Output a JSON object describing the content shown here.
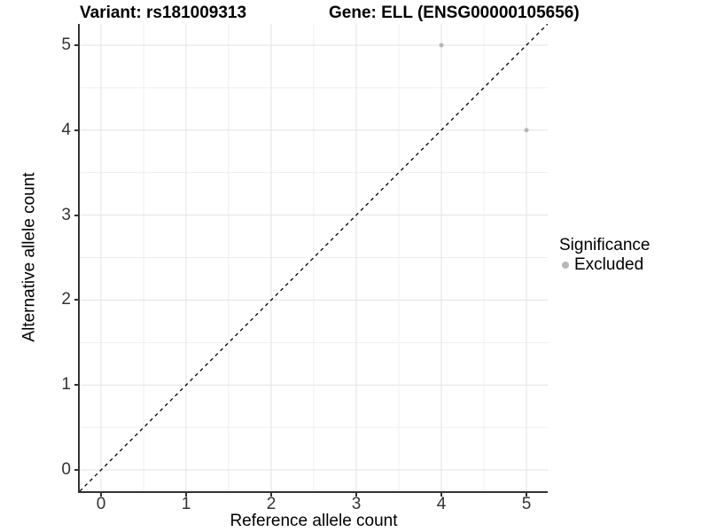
{
  "header": {
    "variant_title": "Variant: rs181009313",
    "gene_title": "Gene: ELL (ENSG00000105656)"
  },
  "axes": {
    "x_label": "Reference allele count",
    "y_label": "Alternative allele count"
  },
  "legend": {
    "title": "Significance",
    "items": [
      {
        "label": "Excluded",
        "color": "#b8b8b8"
      }
    ]
  },
  "chart_data": {
    "type": "scatter",
    "title": "Variant: rs181009313   Gene: ELL (ENSG00000105656)",
    "xlabel": "Reference allele count",
    "ylabel": "Alternative allele count",
    "xlim": [
      -0.25,
      5.25
    ],
    "ylim": [
      -0.25,
      5.25
    ],
    "x_ticks": [
      0,
      1,
      2,
      3,
      4,
      5
    ],
    "y_ticks": [
      0,
      1,
      2,
      3,
      4,
      5
    ],
    "grid": "major+minor",
    "legend_position": "right",
    "series": [
      {
        "name": "Excluded",
        "color": "#b8b8b8",
        "point_radius": 2.5,
        "points": [
          {
            "x": 4,
            "y": 5
          },
          {
            "x": 5,
            "y": 4
          }
        ]
      }
    ],
    "reference_line": {
      "type": "identity",
      "style": "dashed",
      "color": "#000000"
    },
    "colors": {
      "background": "#ffffff",
      "axis_line": "#333333",
      "grid_major": "#e3e3e3",
      "grid_minor": "#efefef",
      "tick_text": "#333333",
      "title_text": "#000000"
    }
  }
}
